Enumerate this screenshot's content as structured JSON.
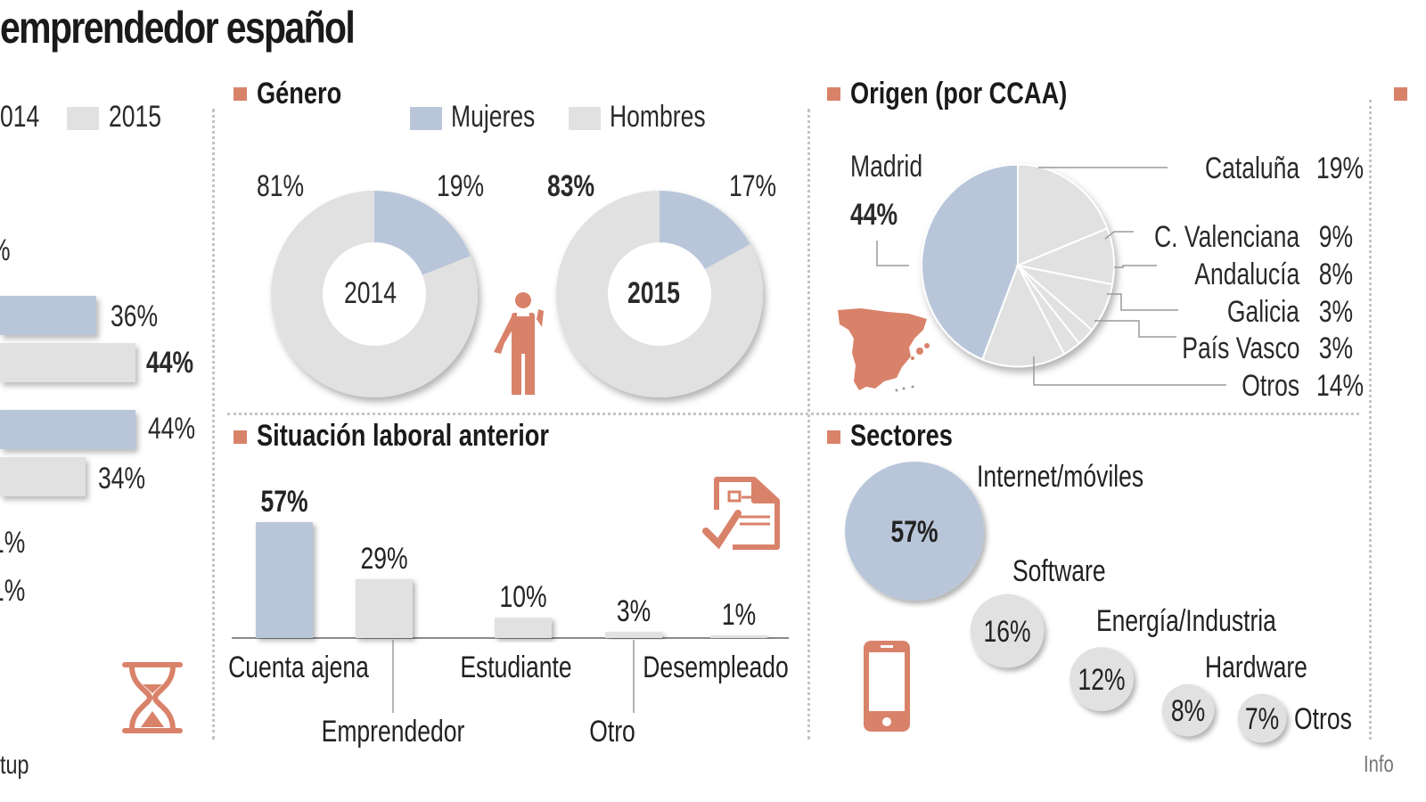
{
  "title": "emprendedor español",
  "colors": {
    "accent": "#d9826a",
    "blue": "#b9c6da",
    "grey": "#e1e1e1",
    "text": "#222222"
  },
  "left_panel": {
    "legend": [
      {
        "label": "014",
        "color": "#b9c6da"
      },
      {
        "label": "2015",
        "color": "#e1e1e1"
      }
    ],
    "partial_labels": [
      "%"
    ],
    "bars": [
      {
        "year": "2014",
        "value": 36,
        "label": "36%",
        "bold": false
      },
      {
        "year": "2015",
        "value": 44,
        "label": "44%",
        "bold": true
      },
      {
        "year": "2014",
        "value": 44,
        "label": "44%",
        "bold": false
      },
      {
        "year": "2015",
        "value": 34,
        "label": "34%",
        "bold": false
      }
    ],
    "small_values": [
      "1%",
      "1%"
    ],
    "icon": "hourglass-icon",
    "source_partial": "tup"
  },
  "chart_data": [
    {
      "type": "pie",
      "title": "Género",
      "subtitle": "2014",
      "legend": [
        "Mujeres",
        "Hombres"
      ],
      "categories": [
        "Mujeres",
        "Hombres"
      ],
      "values": [
        19,
        81
      ],
      "labels": [
        "19%",
        "81%"
      ],
      "center_label": "2014"
    },
    {
      "type": "pie",
      "title": "Género",
      "subtitle": "2015",
      "legend": [
        "Mujeres",
        "Hombres"
      ],
      "categories": [
        "Mujeres",
        "Hombres"
      ],
      "values": [
        17,
        83
      ],
      "labels": [
        "17%",
        "83%"
      ],
      "center_label": "2015"
    },
    {
      "type": "pie",
      "title": "Origen (por CCAA)",
      "categories": [
        "Madrid",
        "Cataluña",
        "C. Valenciana",
        "Andalucía",
        "Galicia",
        "País Vasco",
        "Otros"
      ],
      "values": [
        44,
        19,
        9,
        8,
        3,
        3,
        14
      ],
      "labels": [
        "44%",
        "19%",
        "9%",
        "8%",
        "3%",
        "3%",
        "14%"
      ]
    },
    {
      "type": "bar",
      "title": "Situación laboral anterior",
      "categories": [
        "Cuenta ajena",
        "Emprendedor",
        "Estudiante",
        "Otro",
        "Desempleado"
      ],
      "values": [
        57,
        29,
        10,
        3,
        1
      ],
      "labels": [
        "57%",
        "29%",
        "10%",
        "3%",
        "1%"
      ],
      "xlabel": "",
      "ylabel": "",
      "ylim": [
        0,
        60
      ]
    },
    {
      "type": "scatter",
      "title": "Sectores",
      "categories": [
        "Internet/móviles",
        "Software",
        "Energía/Industria",
        "Hardware",
        "Otros"
      ],
      "values": [
        57,
        16,
        12,
        8,
        7
      ],
      "labels": [
        "57%",
        "16%",
        "12%",
        "8%",
        "7%"
      ]
    }
  ],
  "genero": {
    "title": "Género",
    "legend": [
      {
        "label": "Mujeres",
        "color": "#b9c6da"
      },
      {
        "label": "Hombres",
        "color": "#e1e1e1"
      }
    ],
    "donuts": [
      {
        "year": "2014",
        "hombres": "81%",
        "mujeres": "19%",
        "hombres_val": 81,
        "mujeres_val": 19
      },
      {
        "year": "2015",
        "hombres": "83%",
        "mujeres": "17%",
        "hombres_val": 83,
        "mujeres_val": 17
      }
    ],
    "icon": "worker-icon"
  },
  "origen": {
    "title": "Origen (por CCAA)",
    "madrid_label": "Madrid",
    "madrid_value": "44%",
    "regions": [
      {
        "name": "Cataluña",
        "value": "19%"
      },
      {
        "name": "C. Valenciana",
        "value": "9%"
      },
      {
        "name": "Andalucía",
        "value": "8%"
      },
      {
        "name": "Galicia",
        "value": "3%"
      },
      {
        "name": "País Vasco",
        "value": "3%"
      },
      {
        "name": "Otros",
        "value": "14%"
      }
    ],
    "icon": "spain-map-icon"
  },
  "situacion": {
    "title": "Situación laboral anterior",
    "icon": "form-check-icon"
  },
  "sectores": {
    "title": "Sectores",
    "icon": "smartphone-icon"
  },
  "footer": {
    "credit_partial": "Info"
  }
}
